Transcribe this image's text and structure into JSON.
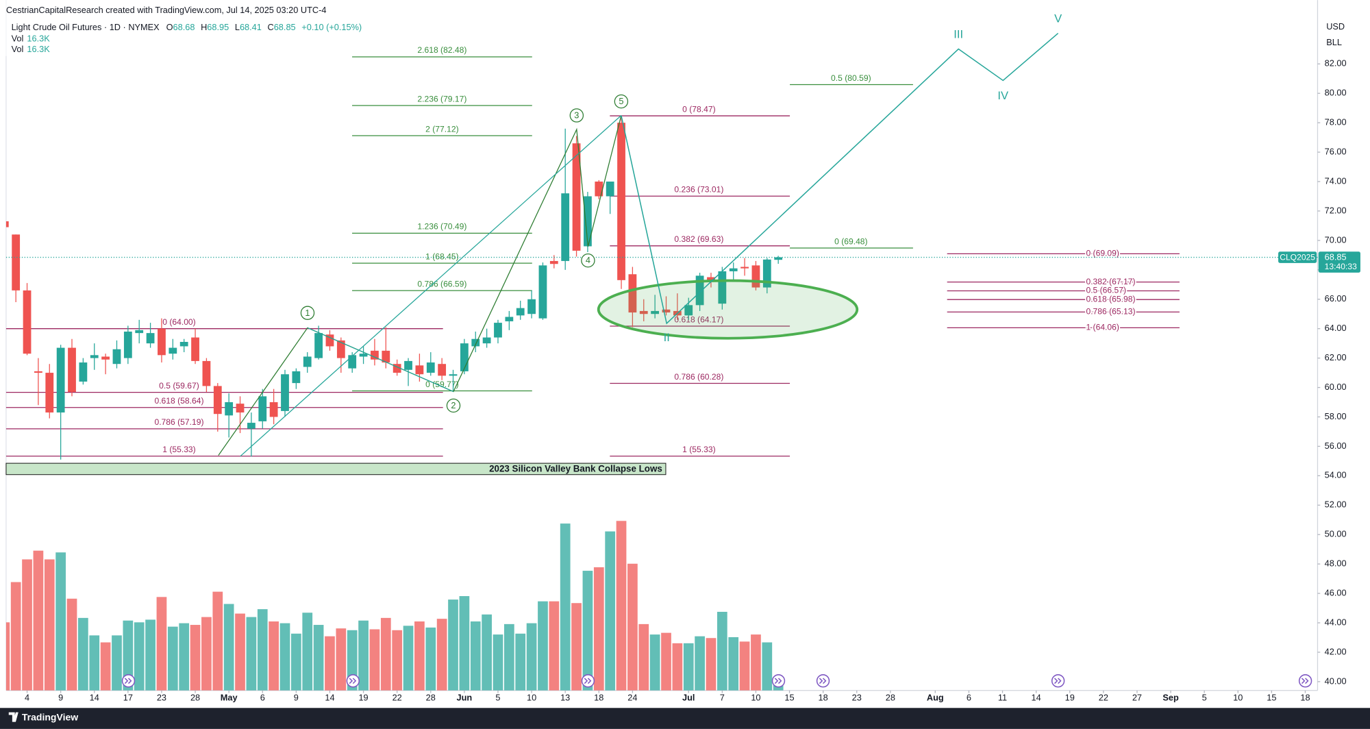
{
  "header": {
    "credit": "CestrianCapitalResearch created with TradingView.com, Jul 14, 2025 03:20 UTC-4",
    "symbol": "Light Crude Oil Futures · 1D · NYMEX",
    "ohlc_labels": [
      "O",
      "H",
      "L",
      "C"
    ],
    "change": "+0.10 (+0.15%)",
    "vol_rows": [
      {
        "name": "Vol",
        "value": "16.3K"
      },
      {
        "name": "Vol",
        "value": "16.3K"
      }
    ]
  },
  "footer": {
    "brand": "TradingView"
  },
  "chart_data": {
    "type": "candlestick",
    "currency": "USD",
    "unit": "BLL",
    "ticker": "CLQ2025",
    "countdown": "13:40:33",
    "up_color": "#26a69a",
    "down_color": "#ef5350",
    "grid": false,
    "x": [
      0,
      1,
      2,
      3,
      4,
      5,
      6,
      7,
      8,
      9,
      10,
      11,
      12,
      13,
      14,
      15,
      16,
      17,
      18,
      19,
      20,
      21,
      22,
      23,
      24,
      25,
      26,
      27,
      28,
      29,
      30,
      31,
      32,
      33,
      34,
      35,
      36,
      37,
      38,
      39,
      40,
      41,
      42,
      43,
      44,
      45,
      46,
      47,
      48,
      49,
      50,
      51,
      52,
      53,
      54,
      55,
      56,
      57,
      58,
      59,
      60,
      61,
      62,
      63,
      64,
      65,
      66,
      67,
      68,
      69
    ],
    "open": [
      71.3,
      70.4,
      66.6,
      61.1,
      61.0,
      58.3,
      62.7,
      60.4,
      62.0,
      62.1,
      61.6,
      62.0,
      63.7,
      63.0,
      64.0,
      62.3,
      62.8,
      63.4,
      61.8,
      60.1,
      58.1,
      58.9,
      57.2,
      57.7,
      59.0,
      58.4,
      60.3,
      61.4,
      62.0,
      63.6,
      63.2,
      61.3,
      62.1,
      62.5,
      62.5,
      61.6,
      61.2,
      61.5,
      61.0,
      61.6,
      60.8,
      61.1,
      62.8,
      63.0,
      63.4,
      64.5,
      64.9,
      65.0,
      64.7,
      68.6,
      68.6,
      76.6,
      69.6,
      74.0,
      73.0,
      78.0,
      67.7,
      65.2,
      65.0,
      65.3,
      65.2,
      64.9,
      65.6,
      67.5,
      65.7,
      67.9,
      68.2,
      68.3,
      66.8,
      68.68
    ],
    "high": [
      71.5,
      70.4,
      67.1,
      62.0,
      61.6,
      62.9,
      63.3,
      62.0,
      63.0,
      62.3,
      63.2,
      64.2,
      64.6,
      64.4,
      64.7,
      63.3,
      63.3,
      64.0,
      62.0,
      60.3,
      59.6,
      59.4,
      58.3,
      59.9,
      59.9,
      61.2,
      61.3,
      62.4,
      64.2,
      63.9,
      63.4,
      62.4,
      62.8,
      63.3,
      64.1,
      61.9,
      62.0,
      62.3,
      62.4,
      62.0,
      61.2,
      63.3,
      63.8,
      64.0,
      64.6,
      65.2,
      65.9,
      66.6,
      68.5,
      69.0,
      77.6,
      77.1,
      73.3,
      74.1,
      74.0,
      78.5,
      68.2,
      66.0,
      66.3,
      66.2,
      66.4,
      66.1,
      67.8,
      67.8,
      68.2,
      68.5,
      68.8,
      68.6,
      68.8,
      68.95
    ],
    "low": [
      70.6,
      65.8,
      62.2,
      58.8,
      57.9,
      55.1,
      59.4,
      60.2,
      61.2,
      60.9,
      61.3,
      61.6,
      63.0,
      62.7,
      61.7,
      61.9,
      62.4,
      61.6,
      59.7,
      57.0,
      56.6,
      56.9,
      55.3,
      57.2,
      57.5,
      58.0,
      59.9,
      61.0,
      61.9,
      62.5,
      61.0,
      61.0,
      61.6,
      61.5,
      61.3,
      60.8,
      60.1,
      60.4,
      60.8,
      60.5,
      59.8,
      60.9,
      62.4,
      62.7,
      63.0,
      63.9,
      64.6,
      64.7,
      64.6,
      68.1,
      68.0,
      68.9,
      69.2,
      72.8,
      71.8,
      66.7,
      64.1,
      64.5,
      64.7,
      64.9,
      64.6,
      64.6,
      65.2,
      66.8,
      65.3,
      67.3,
      67.6,
      66.6,
      66.4,
      68.41
    ],
    "close": [
      70.9,
      66.6,
      62.3,
      61.0,
      58.3,
      62.7,
      59.7,
      61.7,
      62.2,
      61.9,
      62.6,
      63.8,
      63.9,
      63.7,
      62.2,
      62.7,
      63.1,
      61.8,
      60.1,
      58.2,
      59.0,
      58.3,
      57.6,
      59.4,
      58.0,
      60.9,
      61.1,
      62.1,
      63.7,
      62.8,
      62.0,
      62.2,
      62.3,
      61.9,
      61.7,
      61.0,
      61.8,
      60.9,
      61.7,
      60.8,
      60.9,
      63.0,
      63.3,
      63.4,
      64.4,
      64.8,
      65.4,
      66.0,
      68.3,
      68.4,
      73.2,
      69.3,
      73.0,
      73.0,
      74.0,
      67.3,
      65.1,
      65.0,
      65.2,
      65.1,
      64.9,
      65.6,
      67.6,
      67.2,
      67.9,
      68.1,
      68.1,
      66.8,
      68.7,
      68.85
    ],
    "volume": [
      85000,
      135200,
      163500,
      174400,
      163500,
      172200,
      114500,
      90500,
      68700,
      60000,
      68700,
      87200,
      85000,
      88300,
      116600,
      79600,
      83900,
      81800,
      91600,
      123200,
      107900,
      95900,
      91600,
      101400,
      86100,
      83900,
      70900,
      97000,
      81800,
      67600,
      77400,
      75200,
      87200,
      76300,
      90500,
      75200,
      80700,
      86100,
      78500,
      89400,
      113400,
      117700,
      86100,
      94800,
      69800,
      82800,
      70900,
      83900,
      111200,
      111200,
      208200,
      109000,
      149300,
      153700,
      198400,
      211500,
      158100,
      82800,
      69800,
      71900,
      58900,
      58900,
      67600,
      65400,
      98100,
      66500,
      61000,
      69800,
      60000,
      16300
    ],
    "xlim": [
      0.13,
      117.1
    ],
    "ylim": [
      39.4,
      86.34
    ],
    "y2lim": [
      0,
      861100
    ],
    "xticks": [
      {
        "value": 2,
        "label": "4"
      },
      {
        "value": 5,
        "label": "9"
      },
      {
        "value": 8,
        "label": "14"
      },
      {
        "value": 11,
        "label": "17"
      },
      {
        "value": 14,
        "label": "23"
      },
      {
        "value": 17,
        "label": "28"
      },
      {
        "value": 20,
        "label": "May"
      },
      {
        "value": 23,
        "label": "6"
      },
      {
        "value": 26,
        "label": "9"
      },
      {
        "value": 29,
        "label": "14"
      },
      {
        "value": 32,
        "label": "19"
      },
      {
        "value": 35,
        "label": "22"
      },
      {
        "value": 38,
        "label": "28"
      },
      {
        "value": 41,
        "label": "Jun"
      },
      {
        "value": 44,
        "label": "5"
      },
      {
        "value": 47,
        "label": "10"
      },
      {
        "value": 50,
        "label": "13"
      },
      {
        "value": 53,
        "label": "18"
      },
      {
        "value": 56,
        "label": "24"
      },
      {
        "value": 61,
        "label": "Jul"
      },
      {
        "value": 64,
        "label": "7"
      },
      {
        "value": 67,
        "label": "10"
      },
      {
        "value": 70,
        "label": "15"
      },
      {
        "value": 73,
        "label": "18"
      },
      {
        "value": 76,
        "label": "23"
      },
      {
        "value": 79,
        "label": "28"
      },
      {
        "value": 83,
        "label": "Aug"
      },
      {
        "value": 86,
        "label": "6"
      },
      {
        "value": 89,
        "label": "11"
      },
      {
        "value": 92,
        "label": "14"
      },
      {
        "value": 95,
        "label": "19"
      },
      {
        "value": 98,
        "label": "22"
      },
      {
        "value": 101,
        "label": "27"
      },
      {
        "value": 104,
        "label": "Sep"
      },
      {
        "value": 107,
        "label": "5"
      },
      {
        "value": 110,
        "label": "10"
      },
      {
        "value": 113,
        "label": "15"
      },
      {
        "value": 116,
        "label": "18"
      }
    ],
    "yticks": [
      {
        "value": 40,
        "label": "40.00"
      },
      {
        "value": 42,
        "label": "42.00"
      },
      {
        "value": 44,
        "label": "44.00"
      },
      {
        "value": 46,
        "label": "46.00"
      },
      {
        "value": 48,
        "label": "48.00"
      },
      {
        "value": 50,
        "label": "50.00"
      },
      {
        "value": 52,
        "label": "52.00"
      },
      {
        "value": 54,
        "label": "54.00"
      },
      {
        "value": 56,
        "label": "56.00"
      },
      {
        "value": 58,
        "label": "58.00"
      },
      {
        "value": 60,
        "label": "60.00"
      },
      {
        "value": 62,
        "label": "62.00"
      },
      {
        "value": 64,
        "label": "64.00"
      },
      {
        "value": 66,
        "label": "66.00"
      },
      {
        "value": 68,
        "label": "68.00"
      },
      {
        "value": 70,
        "label": "70.00"
      },
      {
        "value": 72,
        "label": "72.00"
      },
      {
        "value": 74,
        "label": "74.00"
      },
      {
        "value": 76,
        "label": "76.00"
      },
      {
        "value": 78,
        "label": "78.00"
      },
      {
        "value": 80,
        "label": "80.00"
      },
      {
        "value": 82,
        "label": "82.00"
      }
    ],
    "fibs": [
      {
        "color": "#388e3c",
        "levels": [
          {
            "label": "2.618 (82.48)",
            "value": 82.48
          },
          {
            "label": "2.236 (79.17)",
            "value": 79.17
          },
          {
            "label": "2 (77.12)",
            "value": 77.12
          },
          {
            "label": "1.236 (70.49)",
            "value": 70.49
          },
          {
            "label": "1 (68.45)",
            "value": 68.45
          },
          {
            "label": "0.786 (66.59)",
            "value": 66.59
          },
          {
            "label": "0 (59.77)",
            "value": 59.77
          }
        ]
      },
      {
        "color": "#9c2760",
        "levels": [
          {
            "label": "0 (64.00)",
            "value": 64.0
          },
          {
            "label": "0.5 (59.67)",
            "value": 59.67
          },
          {
            "label": "0.618 (58.64)",
            "value": 58.64
          },
          {
            "label": "0.786 (57.19)",
            "value": 57.19
          },
          {
            "label": "1 (55.33)",
            "value": 55.33
          }
        ]
      },
      {
        "color": "#9c2760",
        "levels": [
          {
            "label": "0 (78.47)",
            "value": 78.47
          },
          {
            "label": "0.236 (73.01)",
            "value": 73.01
          },
          {
            "label": "0.382 (69.63)",
            "value": 69.63
          },
          {
            "label": "0.618 (64.17)",
            "value": 64.17
          },
          {
            "label": "0.786 (60.28)",
            "value": 60.28
          },
          {
            "label": "1 (55.33)",
            "value": 55.33
          }
        ]
      },
      {
        "color": "#388e3c",
        "levels": [
          {
            "label": "0.5 (80.59)",
            "value": 80.59
          },
          {
            "label": "0 (69.48)",
            "value": 69.48
          }
        ]
      },
      {
        "color": "#9c2760",
        "levels": [
          {
            "label": "0 (69.09)",
            "value": 69.09
          },
          {
            "label": "0.382 (67.17)",
            "value": 67.17
          },
          {
            "label": "0.5 (66.57)",
            "value": 66.57
          },
          {
            "label": "0.618 (65.98)",
            "value": 65.98
          },
          {
            "label": "0.786 (65.13)",
            "value": 65.13
          },
          {
            "label": "1 (64.06)",
            "value": 64.06
          }
        ]
      }
    ],
    "waves": [
      "1",
      "2",
      "3",
      "4",
      "5"
    ],
    "elliott": [
      "II",
      "III",
      "IV",
      "V"
    ],
    "annotation": "2023 Silicon Valley Bank Collapse Lows"
  }
}
